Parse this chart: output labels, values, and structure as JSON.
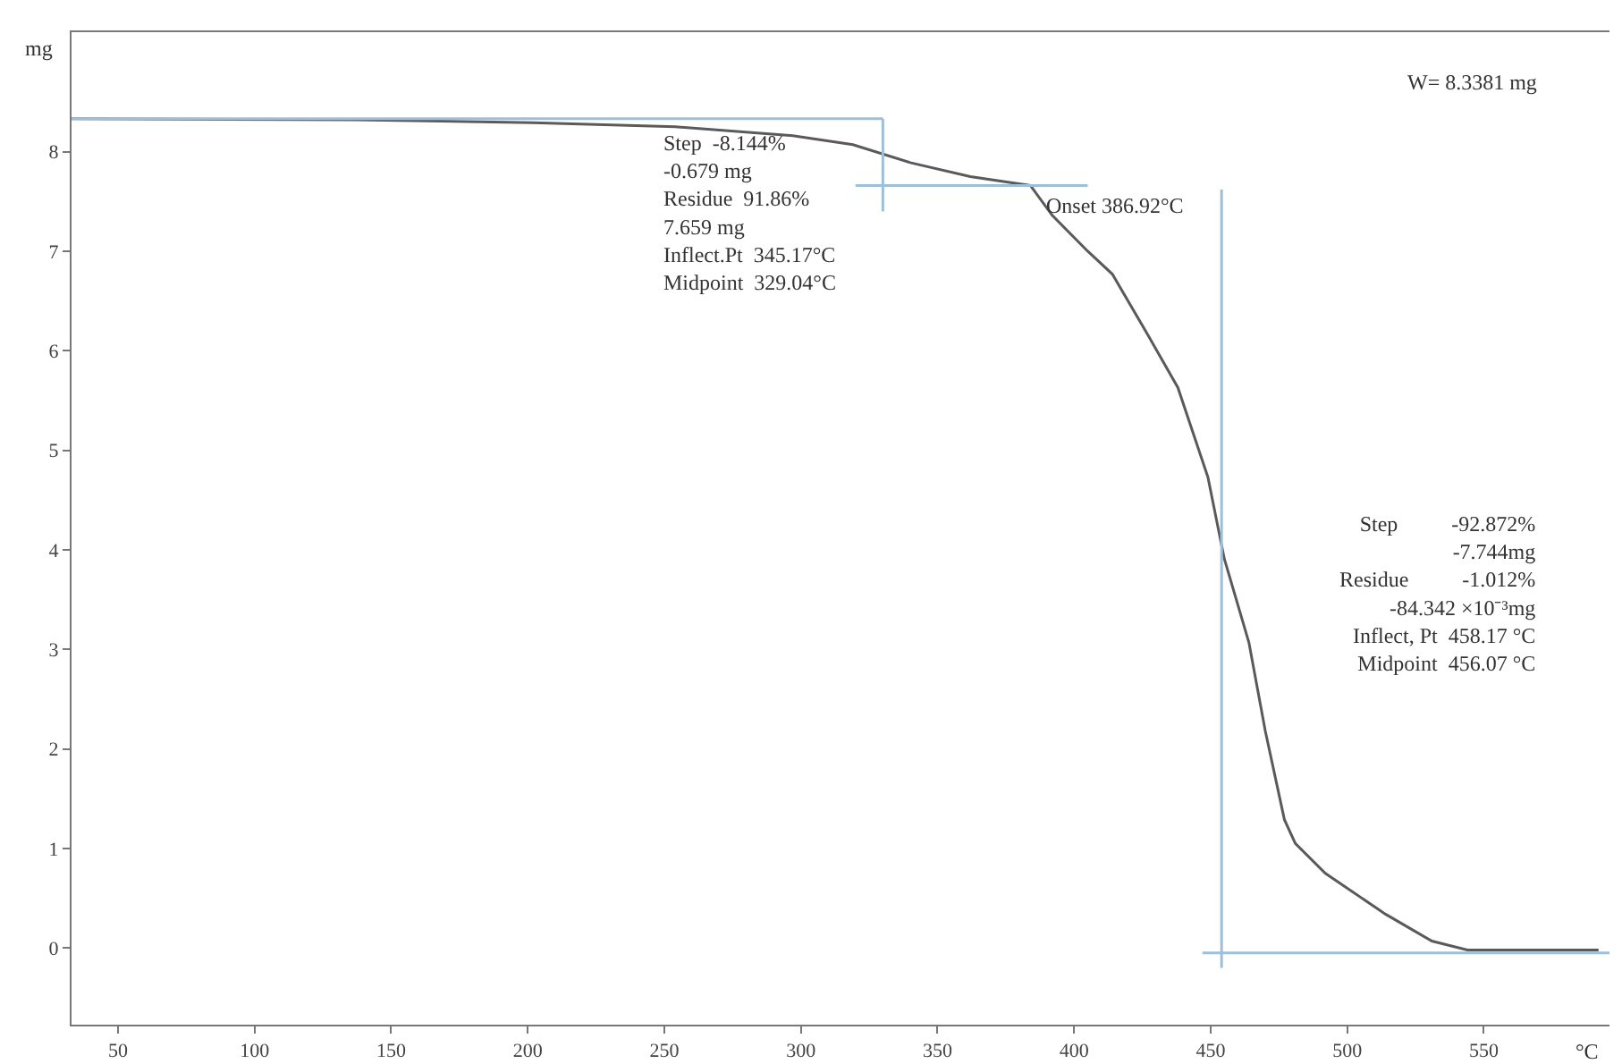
{
  "chart_data": {
    "type": "line",
    "xlabel": "°C",
    "ylabel": "mg",
    "xlim": [
      33,
      596
    ],
    "ylim": [
      -0.77,
      9.2
    ],
    "xticks": [
      50,
      100,
      150,
      200,
      250,
      300,
      350,
      400,
      450,
      500,
      550
    ],
    "yticks": [
      0,
      1,
      2,
      3,
      4,
      5,
      6,
      7,
      8
    ],
    "grid": false,
    "marker": "none",
    "line_style": "solid",
    "series": [
      {
        "color": "#5a5a5a",
        "x": [
          33,
          137,
          202,
          254,
          297,
          319,
          340,
          362,
          384,
          392,
          405,
          414,
          427,
          438,
          449,
          455,
          464,
          470,
          477,
          481,
          492,
          514,
          531,
          544,
          592
        ],
        "values": [
          8.33,
          8.32,
          8.29,
          8.25,
          8.16,
          8.07,
          7.89,
          7.75,
          7.66,
          7.36,
          7.0,
          6.77,
          6.16,
          5.63,
          4.73,
          3.91,
          3.07,
          2.18,
          1.29,
          1.05,
          0.75,
          0.34,
          0.07,
          -0.02,
          -0.02
        ]
      },
      {
        "color": "#9cc0dc",
        "x": [
          33,
          330
        ],
        "values": [
          8.33,
          8.33
        ]
      },
      {
        "color": "#9cc0dc",
        "x": [
          330,
          330
        ],
        "values": [
          8.33,
          7.4
        ]
      },
      {
        "color": "#9cc0dc",
        "x": [
          320,
          405
        ],
        "values": [
          7.66,
          7.66
        ]
      },
      {
        "color": "#9cc0dc",
        "x": [
          454,
          454
        ],
        "values": [
          7.62,
          -0.2
        ]
      },
      {
        "color": "#9cc0dc",
        "x": [
          447,
          596
        ],
        "values": [
          -0.05,
          -0.05
        ]
      }
    ],
    "annotations": [
      "W= 8.3381 mg",
      "Step  -8.144%\n-0.679 mg\nResidue  91.86%\n7.659 mg\nInflect.Pt  345.17°C\nMidpoint  329.04°C",
      {
        "text": "Onset 386.92°C",
        "x": 386.92,
        "y": 7.66
      },
      "Step          -92.872%\n-7.744mg\nResidue          -1.012%\n-84.342 ×10⁻³mg\nInflect, Pt  458.17 °C\nMidpoint  456.07 °C"
    ]
  }
}
